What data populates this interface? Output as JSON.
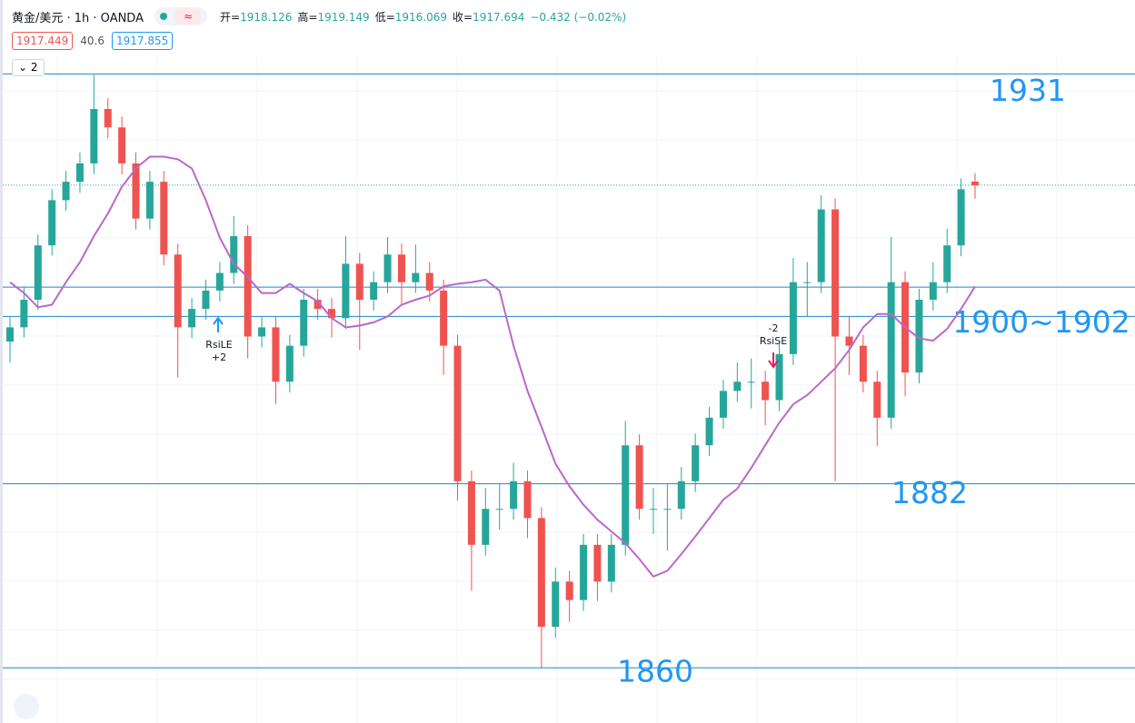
{
  "header": {
    "symbol": "黄金/美元 · 1h · OANDA",
    "badge": "≈",
    "ohlc": [
      {
        "k": "开=",
        "v": "1918.126"
      },
      {
        "k": "高=",
        "v": "1919.149"
      },
      {
        "k": "低=",
        "v": "1916.069"
      },
      {
        "k": "收=",
        "v": "1917.694"
      }
    ],
    "change": "−0.432 (−0.02%)",
    "bid": "1917.449",
    "spread": "40.6",
    "ask": "1917.855",
    "collapse": "2"
  },
  "chart_data": {
    "type": "candlestick",
    "ylim": [
      1853.4,
      1933.1
    ],
    "up_color": "#26a69a",
    "down_color": "#ef5350",
    "ma_color": "#ba68c8",
    "level_color": "#1e88c8",
    "candles": [
      {
        "o": 1899.0,
        "h": 1902.0,
        "l": 1896.5,
        "c": 1900.7
      },
      {
        "o": 1900.7,
        "h": 1905.5,
        "l": 1899.5,
        "c": 1904.0
      },
      {
        "o": 1904.0,
        "h": 1911.8,
        "l": 1902.8,
        "c": 1910.5
      },
      {
        "o": 1910.5,
        "h": 1917.2,
        "l": 1909.3,
        "c": 1915.9
      },
      {
        "o": 1915.9,
        "h": 1919.4,
        "l": 1914.6,
        "c": 1918.1
      },
      {
        "o": 1918.1,
        "h": 1921.6,
        "l": 1916.8,
        "c": 1920.3
      },
      {
        "o": 1920.3,
        "h": 1930.9,
        "l": 1919.0,
        "c": 1926.8
      },
      {
        "o": 1926.8,
        "h": 1928.1,
        "l": 1923.3,
        "c": 1924.6
      },
      {
        "o": 1924.6,
        "h": 1925.9,
        "l": 1919.0,
        "c": 1920.3
      },
      {
        "o": 1920.3,
        "h": 1921.6,
        "l": 1912.4,
        "c": 1913.7
      },
      {
        "o": 1913.7,
        "h": 1919.4,
        "l": 1912.4,
        "c": 1918.1
      },
      {
        "o": 1918.1,
        "h": 1919.4,
        "l": 1908.1,
        "c": 1909.4
      },
      {
        "o": 1909.4,
        "h": 1910.7,
        "l": 1894.7,
        "c": 1900.7
      },
      {
        "o": 1900.7,
        "h": 1904.2,
        "l": 1899.4,
        "c": 1902.9
      },
      {
        "o": 1902.9,
        "h": 1906.4,
        "l": 1901.6,
        "c": 1905.1
      },
      {
        "o": 1905.1,
        "h": 1908.5,
        "l": 1903.8,
        "c": 1907.2
      },
      {
        "o": 1907.2,
        "h": 1914.0,
        "l": 1905.9,
        "c": 1911.6
      },
      {
        "o": 1911.6,
        "h": 1912.9,
        "l": 1897.0,
        "c": 1899.6
      },
      {
        "o": 1899.6,
        "h": 1902.0,
        "l": 1898.3,
        "c": 1900.7
      },
      {
        "o": 1900.7,
        "h": 1902.0,
        "l": 1891.5,
        "c": 1894.2
      },
      {
        "o": 1894.2,
        "h": 1899.8,
        "l": 1892.9,
        "c": 1898.5
      },
      {
        "o": 1898.5,
        "h": 1905.3,
        "l": 1897.2,
        "c": 1904.0
      },
      {
        "o": 1904.0,
        "h": 1905.3,
        "l": 1901.6,
        "c": 1902.9
      },
      {
        "o": 1902.9,
        "h": 1904.2,
        "l": 1899.5,
        "c": 1901.8
      },
      {
        "o": 1901.8,
        "h": 1911.6,
        "l": 1900.5,
        "c": 1908.3
      },
      {
        "o": 1908.3,
        "h": 1909.6,
        "l": 1898.0,
        "c": 1904.0
      },
      {
        "o": 1904.0,
        "h": 1907.4,
        "l": 1902.7,
        "c": 1906.1
      },
      {
        "o": 1906.1,
        "h": 1911.5,
        "l": 1904.8,
        "c": 1909.4
      },
      {
        "o": 1909.4,
        "h": 1910.7,
        "l": 1903.5,
        "c": 1906.1
      },
      {
        "o": 1906.1,
        "h": 1910.6,
        "l": 1904.8,
        "c": 1907.2
      },
      {
        "o": 1907.2,
        "h": 1908.5,
        "l": 1903.8,
        "c": 1905.1
      },
      {
        "o": 1905.1,
        "h": 1906.4,
        "l": 1895.0,
        "c": 1898.5
      },
      {
        "o": 1898.5,
        "h": 1899.8,
        "l": 1880.0,
        "c": 1882.3
      },
      {
        "o": 1882.3,
        "h": 1883.6,
        "l": 1869.2,
        "c": 1874.7
      },
      {
        "o": 1874.7,
        "h": 1881.5,
        "l": 1873.4,
        "c": 1879.0
      },
      {
        "o": 1879.0,
        "h": 1882.0,
        "l": 1876.5,
        "c": 1879.0
      },
      {
        "o": 1879.0,
        "h": 1884.5,
        "l": 1877.7,
        "c": 1882.3
      },
      {
        "o": 1882.3,
        "h": 1883.6,
        "l": 1875.5,
        "c": 1877.9
      },
      {
        "o": 1877.9,
        "h": 1879.2,
        "l": 1860.0,
        "c": 1864.9
      },
      {
        "o": 1864.9,
        "h": 1872.0,
        "l": 1863.6,
        "c": 1870.3
      },
      {
        "o": 1870.3,
        "h": 1871.6,
        "l": 1865.5,
        "c": 1868.1
      },
      {
        "o": 1868.1,
        "h": 1876.0,
        "l": 1866.8,
        "c": 1874.7
      },
      {
        "o": 1874.7,
        "h": 1876.0,
        "l": 1868.0,
        "c": 1870.3
      },
      {
        "o": 1870.3,
        "h": 1876.0,
        "l": 1869.0,
        "c": 1874.7
      },
      {
        "o": 1874.7,
        "h": 1889.5,
        "l": 1873.4,
        "c": 1886.6
      },
      {
        "o": 1886.6,
        "h": 1887.9,
        "l": 1877.7,
        "c": 1879.0
      },
      {
        "o": 1879.0,
        "h": 1881.5,
        "l": 1876.0,
        "c": 1879.0
      },
      {
        "o": 1879.0,
        "h": 1882.0,
        "l": 1874.0,
        "c": 1879.0
      },
      {
        "o": 1879.0,
        "h": 1884.0,
        "l": 1877.7,
        "c": 1882.3
      },
      {
        "o": 1882.3,
        "h": 1888.0,
        "l": 1881.0,
        "c": 1886.6
      },
      {
        "o": 1886.6,
        "h": 1891.2,
        "l": 1885.3,
        "c": 1889.9
      },
      {
        "o": 1889.9,
        "h": 1894.4,
        "l": 1888.6,
        "c": 1893.1
      },
      {
        "o": 1893.1,
        "h": 1896.5,
        "l": 1891.8,
        "c": 1894.2
      },
      {
        "o": 1894.2,
        "h": 1897.0,
        "l": 1891.0,
        "c": 1894.2
      },
      {
        "o": 1894.2,
        "h": 1895.5,
        "l": 1889.0,
        "c": 1892.0
      },
      {
        "o": 1892.0,
        "h": 1898.8,
        "l": 1890.7,
        "c": 1897.5
      },
      {
        "o": 1897.5,
        "h": 1909.0,
        "l": 1896.2,
        "c": 1906.1
      },
      {
        "o": 1906.1,
        "h": 1908.5,
        "l": 1902.0,
        "c": 1906.1
      },
      {
        "o": 1906.1,
        "h": 1916.5,
        "l": 1904.8,
        "c": 1914.8
      },
      {
        "o": 1914.8,
        "h": 1916.1,
        "l": 1882.3,
        "c": 1899.6
      },
      {
        "o": 1899.6,
        "h": 1902.0,
        "l": 1895.0,
        "c": 1898.5
      },
      {
        "o": 1898.5,
        "h": 1899.8,
        "l": 1892.9,
        "c": 1894.2
      },
      {
        "o": 1894.2,
        "h": 1895.5,
        "l": 1886.5,
        "c": 1889.9
      },
      {
        "o": 1889.9,
        "h": 1911.5,
        "l": 1888.6,
        "c": 1906.1
      },
      {
        "o": 1906.1,
        "h": 1907.4,
        "l": 1892.5,
        "c": 1895.3
      },
      {
        "o": 1895.3,
        "h": 1905.3,
        "l": 1894.0,
        "c": 1904.0
      },
      {
        "o": 1904.0,
        "h": 1908.5,
        "l": 1902.7,
        "c": 1906.1
      },
      {
        "o": 1906.1,
        "h": 1912.5,
        "l": 1904.8,
        "c": 1910.5
      },
      {
        "o": 1910.5,
        "h": 1918.5,
        "l": 1909.2,
        "c": 1917.2
      },
      {
        "o": 1918.126,
        "h": 1919.149,
        "l": 1916.069,
        "c": 1917.694
      }
    ],
    "ma": [
      1906.1,
      1904.8,
      1903.1,
      1903.4,
      1906.1,
      1908.5,
      1911.6,
      1914.3,
      1917.5,
      1919.7,
      1921.1,
      1921.1,
      1920.8,
      1919.7,
      1915.9,
      1911.4,
      1908.3,
      1906.7,
      1904.8,
      1904.8,
      1905.9,
      1904.8,
      1903.8,
      1901.8,
      1900.7,
      1900.9,
      1901.3,
      1902.0,
      1903.4,
      1904.0,
      1904.5,
      1905.6,
      1905.9,
      1906.1,
      1906.4,
      1905.1,
      1898.5,
      1893.1,
      1888.8,
      1884.4,
      1881.7,
      1879.5,
      1877.7,
      1876.3,
      1874.9,
      1873.0,
      1870.9,
      1871.6,
      1873.6,
      1875.7,
      1877.9,
      1880.1,
      1881.4,
      1883.9,
      1886.6,
      1889.3,
      1891.5,
      1892.6,
      1894.2,
      1895.8,
      1898.0,
      1900.7,
      1902.3,
      1902.3,
      1900.7,
      1899.4,
      1899.1,
      1900.5,
      1902.9,
      1905.6
    ],
    "levels": [
      {
        "value": 1931,
        "label": "1931"
      },
      {
        "value": 1905.5
      },
      {
        "value": 1902,
        "label": "1900~1902"
      },
      {
        "value": 1882,
        "label": "1882"
      },
      {
        "value": 1860,
        "label": "1860"
      }
    ],
    "signals": [
      {
        "label": "RsiLE",
        "size": "+2"
      },
      {
        "size": "-2",
        "label": "RsiSE"
      }
    ]
  }
}
